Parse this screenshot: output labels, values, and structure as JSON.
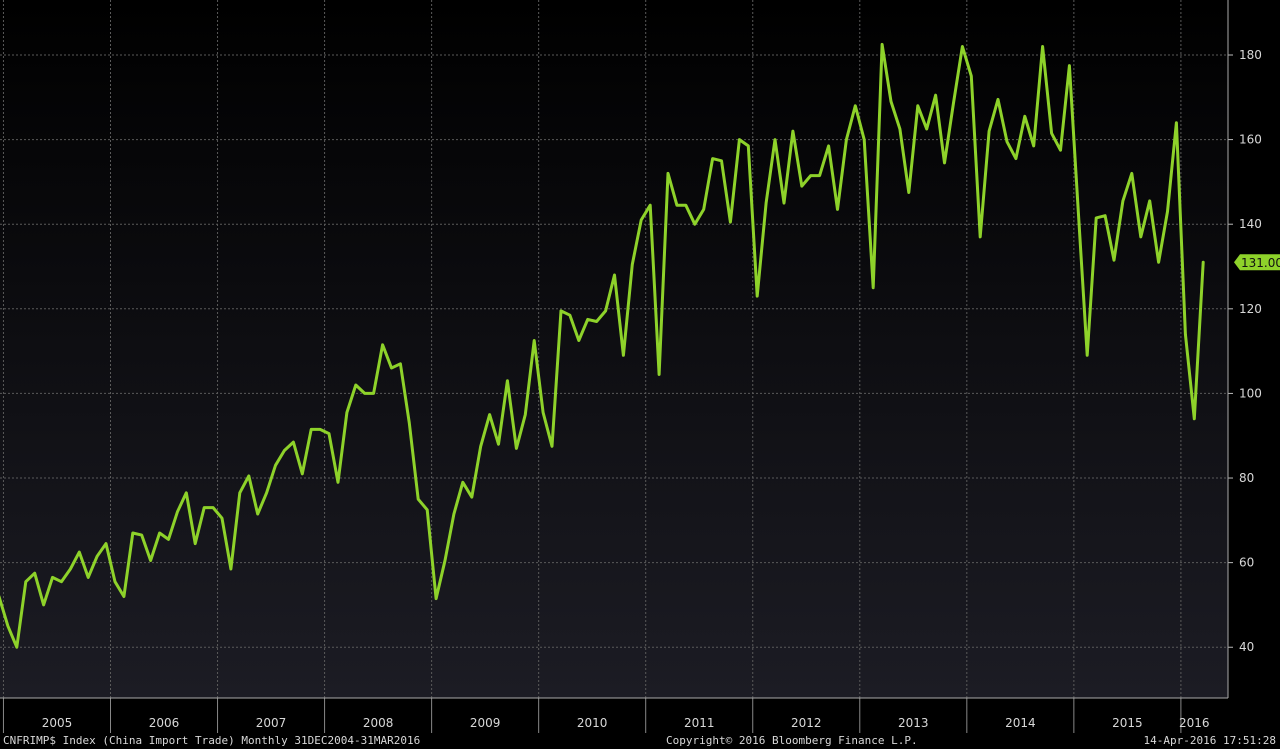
{
  "chart_data": {
    "type": "line",
    "series": [
      {
        "values": [
          52,
          45,
          40,
          55.5,
          57.5,
          50,
          56.5,
          55.5,
          58.5,
          62.5,
          56.5,
          61.5,
          64.5,
          55.5,
          52,
          67,
          66.5,
          60.5,
          67,
          65.5,
          72,
          76.5,
          64.5,
          73,
          73,
          70.5,
          58.5,
          76.5,
          80.5,
          71.5,
          76.5,
          83,
          86.5,
          88.5,
          81,
          91.5,
          91.5,
          90.5,
          79,
          95.5,
          102,
          100,
          100,
          111.5,
          106,
          107,
          93,
          75,
          72.5,
          51.5,
          60.5,
          71.5,
          79,
          75.5,
          87.5,
          95,
          88,
          103,
          87,
          95,
          112.5,
          95.5,
          87.5,
          119.5,
          118.5,
          112.5,
          117.5,
          117,
          119.5,
          128,
          109,
          130.5,
          141,
          144.5,
          104.5,
          152,
          144.5,
          144.5,
          140,
          143.5,
          155.5,
          155,
          140.5,
          160,
          158.5,
          123,
          145,
          160,
          145,
          162,
          149,
          151.5,
          151.5,
          158.5,
          143.5,
          160,
          168,
          160,
          125,
          182.5,
          169,
          162.5,
          147.5,
          168,
          162.5,
          170.5,
          154.5,
          168.5,
          182,
          175,
          137,
          162,
          169.5,
          159.5,
          155.5,
          165.5,
          158.5,
          182,
          161.5,
          157.5,
          177.5,
          143,
          109,
          141.5,
          142,
          131.5,
          145.5,
          152,
          137,
          145.5,
          131,
          143,
          164,
          114,
          94,
          131
        ]
      }
    ],
    "x_start": "2004-12",
    "x_end": "2016-03",
    "frequency": "monthly",
    "x_tick_labels": [
      "2005",
      "2006",
      "2007",
      "2008",
      "2009",
      "2010",
      "2011",
      "2012",
      "2013",
      "2014",
      "2015",
      "2016"
    ],
    "y_ticks": [
      40,
      60,
      80,
      100,
      120,
      140,
      160,
      180
    ],
    "ylim": [
      28,
      193
    ],
    "last_value_label": "131.00",
    "grid": true,
    "y_axis_side": "right",
    "colors": {
      "line": "#8ed22a",
      "grid": "#5a5a5a",
      "background_top": "#000000",
      "background_bottom": "#1c1c24",
      "text": "#d8d8d8"
    }
  },
  "footer": {
    "left": "CNFRIMP$ Index (China Import Trade)  Monthly 31DEC2004-31MAR2016",
    "center": "Copyright© 2016 Bloomberg Finance L.P.",
    "right": "14-Apr-2016 17:51:28"
  }
}
